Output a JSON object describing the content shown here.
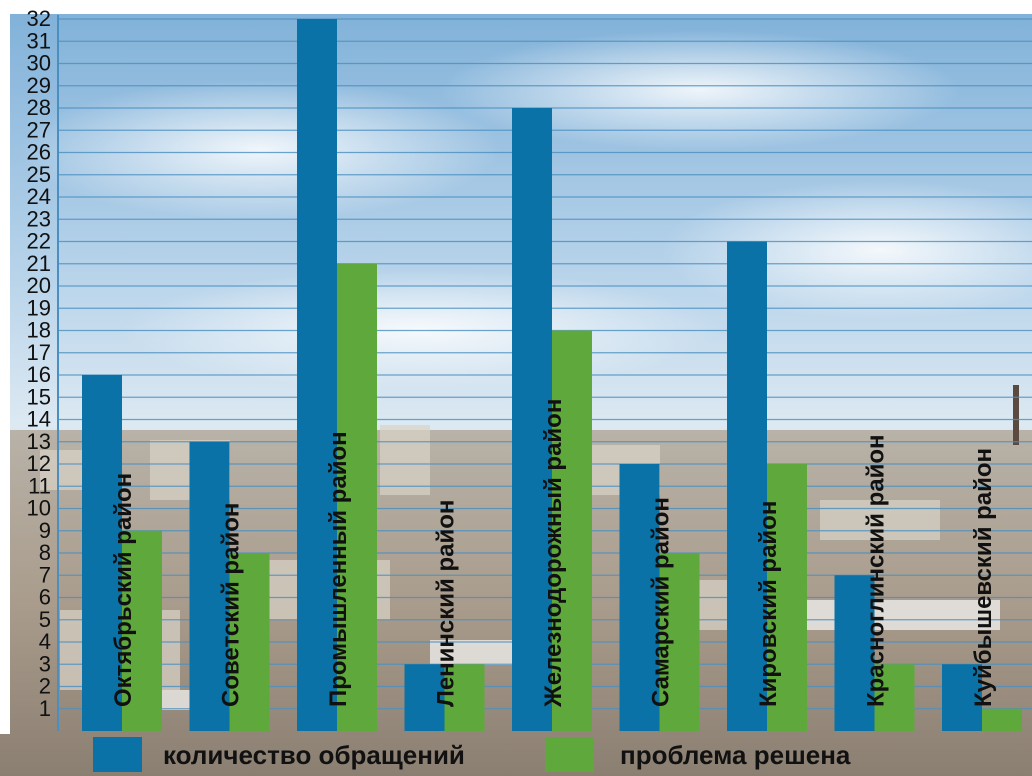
{
  "chart_data": {
    "type": "bar",
    "categories": [
      "Октябрьский район",
      "Советский район",
      "Промышленный район",
      "Ленинский район",
      "Железнодорожный район",
      "Самарский район",
      "Кировский район",
      "Красноглинский район",
      "Куйбышевский район"
    ],
    "series": [
      {
        "name": "количество обращений",
        "values": [
          16,
          13,
          32,
          3,
          28,
          12,
          22,
          7,
          3
        ],
        "color": "#0a72a6"
      },
      {
        "name": "проблема решена",
        "values": [
          9,
          8,
          21,
          3,
          18,
          8,
          12,
          3,
          1
        ],
        "color": "#5fa83c"
      }
    ],
    "y_ticks": [
      1,
      2,
      3,
      4,
      5,
      6,
      7,
      8,
      9,
      10,
      11,
      12,
      13,
      14,
      15,
      16,
      17,
      18,
      19,
      20,
      21,
      22,
      23,
      24,
      25,
      26,
      27,
      28,
      29,
      30,
      31,
      32
    ],
    "ylim": [
      0,
      32
    ],
    "grid": true,
    "legend_position": "bottom",
    "background": "city-panorama-under-cloudy-sky",
    "colors": {
      "grid_line": "#4a8fc0",
      "sky_top": "#8fb9dc",
      "sky_mid": "#cfe2f0",
      "city": "#b9a995"
    }
  }
}
